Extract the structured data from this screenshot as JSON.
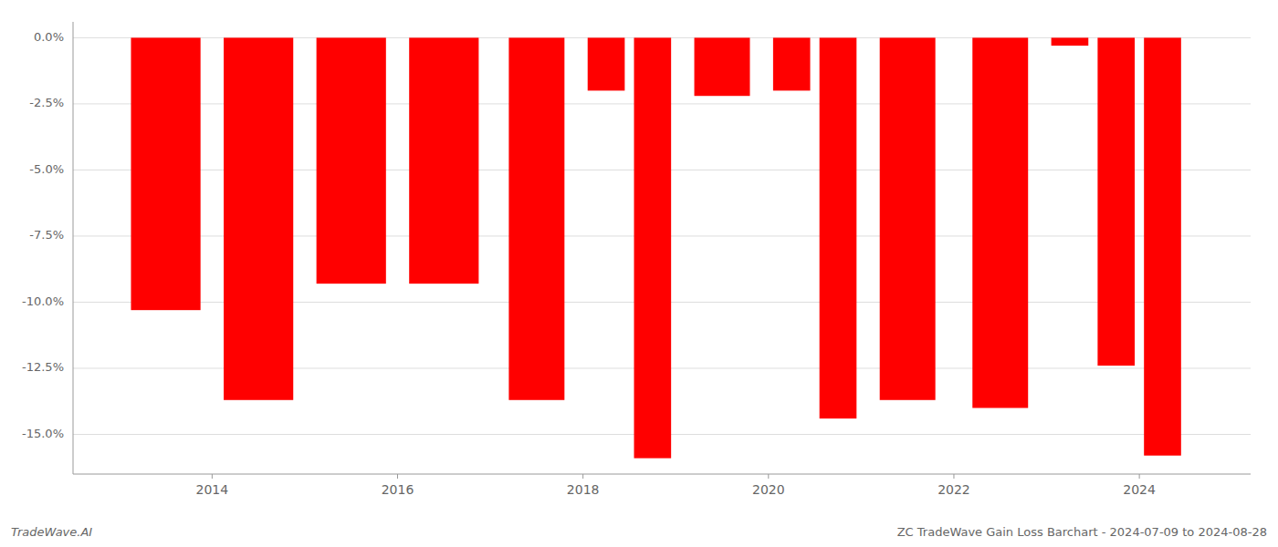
{
  "chart_data": {
    "type": "bar",
    "x": [
      2013.5,
      2014.5,
      2015.5,
      2016.5,
      2017.5,
      2018.25,
      2018.75,
      2019.5,
      2020.25,
      2020.75,
      2021.5,
      2022.5,
      2023.25,
      2023.75,
      2024.25
    ],
    "values": [
      -10.3,
      -13.7,
      -9.3,
      -9.3,
      -13.7,
      -2.0,
      -15.9,
      -2.2,
      -2.0,
      -14.4,
      -13.7,
      -14.0,
      -0.3,
      -12.4,
      -15.8
    ],
    "color": "#ff0000",
    "xlim": [
      2012.5,
      2025.2
    ],
    "ylim": [
      -16.5,
      0.6
    ],
    "xticks": [
      2014,
      2016,
      2018,
      2020,
      2022,
      2024
    ],
    "yticks": [
      {
        "value": 0.0,
        "label": "0.0%"
      },
      {
        "value": -2.5,
        "label": "-2.5%"
      },
      {
        "value": -5.0,
        "label": "-5.0%"
      },
      {
        "value": -7.5,
        "label": "-7.5%"
      },
      {
        "value": -10.0,
        "label": "-10.0%"
      },
      {
        "value": -12.5,
        "label": "-12.5%"
      },
      {
        "value": -15.0,
        "label": "-15.0%"
      }
    ],
    "grid": true,
    "annotations": [
      "TradeWave.AI",
      "ZC TradeWave Gain Loss Barchart - 2024-07-09 to 2024-08-28"
    ]
  }
}
